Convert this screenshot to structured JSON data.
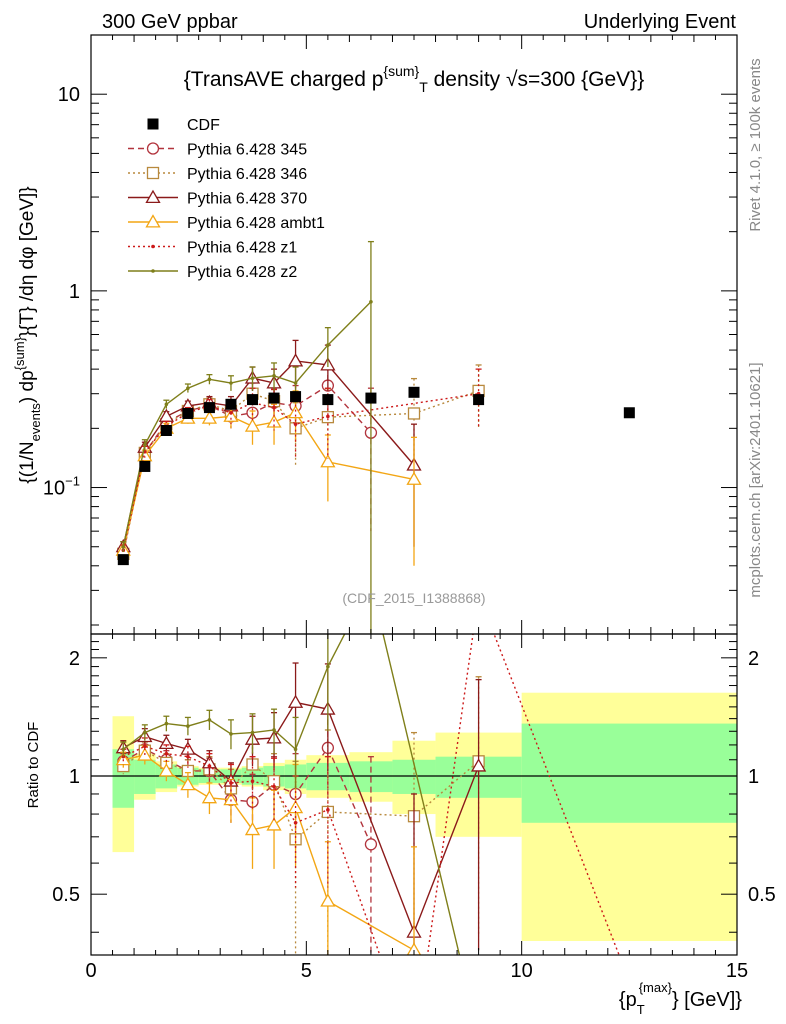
{
  "header": {
    "left": "300 GeV ppbar",
    "right": "Underlying Event"
  },
  "side_text": {
    "rivet": "Rivet 4.1.0, ≥ 100k events",
    "mcplots": "mcplots.cern.ch [arXiv:2401.10621]"
  },
  "chart_data": {
    "type": "line",
    "title": "{TransAVE charged p^{sum}_T density √s=300 {GeV}}",
    "title_parts": {
      "pre": "{TransAVE charged p",
      "sup": "{sum}",
      "sub": "T",
      "post": " density √s=300 {GeV}}"
    },
    "watermark": "(CDF_2015_I1388868)",
    "ylabel": "{(1/N_{events}) dp^{sum}}{T} /dη dφ [GeV]}",
    "ylabel_parts": {
      "a": "{(1/N",
      "a_sub": "events",
      "b": ") dp",
      "b_sup": "{sum}",
      "c": "}{T} /dη  dφ [GeV]}"
    },
    "xlabel": "{p_T^{max}} [GeV]}",
    "xlabel_parts": {
      "pre": "{p",
      "sub": "T",
      "sup": "{max}",
      "post": "} [GeV]}"
    },
    "ratio_ylabel": "Ratio to CDF",
    "xlim": [
      0,
      15
    ],
    "ylim": [
      0.018,
      20
    ],
    "yscale": "log",
    "ratio_ylim": [
      0.35,
      2.3
    ],
    "x_ticks": [
      "0",
      "5",
      "10",
      "15"
    ],
    "y_ticks": [
      "10^{-1}",
      "1",
      "10"
    ],
    "ratio_y_ticks": [
      "0.5",
      "1",
      "2"
    ],
    "legend": [
      "CDF",
      "Pythia 6.428 345",
      "Pythia 6.428 346",
      "Pythia 6.428 370",
      "Pythia 6.428 ambt1",
      "Pythia 6.428 z1",
      "Pythia 6.428 z2"
    ],
    "data": {
      "name": "CDF",
      "x": [
        0.75,
        1.25,
        1.75,
        2.25,
        2.75,
        3.25,
        3.75,
        4.25,
        4.75,
        5.5,
        6.5,
        7.5,
        9.0,
        12.5
      ],
      "y": [
        0.043,
        0.128,
        0.195,
        0.238,
        0.255,
        0.265,
        0.28,
        0.285,
        0.29,
        0.28,
        0.285,
        0.305,
        0.28,
        0.24
      ]
    },
    "ratio_band": {
      "edges": [
        0.5,
        1.0,
        1.5,
        2.0,
        2.5,
        3.0,
        3.5,
        4.0,
        4.5,
        5.0,
        6.0,
        7.0,
        8.0,
        10.0,
        15.0
      ],
      "stat_lo": [
        0.83,
        0.9,
        0.93,
        0.95,
        0.96,
        0.96,
        0.95,
        0.94,
        0.93,
        0.92,
        0.91,
        0.9,
        0.88,
        0.76
      ],
      "stat_hi": [
        1.17,
        1.1,
        1.07,
        1.05,
        1.04,
        1.04,
        1.05,
        1.06,
        1.07,
        1.08,
        1.09,
        1.1,
        1.12,
        1.36
      ],
      "tot_lo": [
        0.64,
        0.87,
        0.91,
        0.94,
        0.95,
        0.95,
        0.94,
        0.92,
        0.9,
        0.88,
        0.86,
        0.8,
        0.7,
        0.38
      ],
      "tot_hi": [
        1.42,
        1.14,
        1.09,
        1.06,
        1.05,
        1.05,
        1.06,
        1.08,
        1.1,
        1.13,
        1.15,
        1.23,
        1.29,
        1.63
      ]
    },
    "series": [
      {
        "name": "Pythia 6.428 345",
        "color": "#b2343d",
        "dash": "6,4",
        "marker": "circle",
        "x": [
          0.75,
          1.25,
          1.75,
          2.25,
          2.75,
          3.25,
          3.75,
          4.25,
          4.75,
          5.5,
          6.5
        ],
        "y": [
          0.047,
          0.15,
          0.215,
          0.245,
          0.262,
          0.23,
          0.24,
          0.27,
          0.26,
          0.33,
          0.19
        ],
        "err": [
          0.003,
          0.01,
          0.012,
          0.015,
          0.02,
          0.03,
          0.04,
          0.05,
          0.07,
          0.09,
          0.13
        ],
        "ratio": [
          1.09,
          1.17,
          1.1,
          1.03,
          1.03,
          0.87,
          0.86,
          0.95,
          0.9,
          1.18,
          0.67
        ],
        "ratio_err": [
          0.05,
          0.06,
          0.06,
          0.07,
          0.08,
          0.11,
          0.15,
          0.17,
          0.24,
          0.3,
          0.45
        ],
        "ratio_off": [
          {
            "x": 7.5,
            "y": 0.37
          }
        ]
      },
      {
        "name": "Pythia 6.428 346",
        "color": "#b8893d",
        "dash": "2,3",
        "marker": "square",
        "x": [
          0.75,
          1.25,
          1.75,
          2.25,
          2.75,
          3.25,
          3.75,
          4.25,
          4.75,
          5.5,
          7.5,
          9.0
        ],
        "y": [
          0.046,
          0.15,
          0.21,
          0.245,
          0.265,
          0.245,
          0.3,
          0.275,
          0.2,
          0.228,
          0.238,
          0.31
        ],
        "err": [
          0.003,
          0.01,
          0.013,
          0.015,
          0.02,
          0.03,
          0.04,
          0.05,
          0.07,
          0.09,
          0.12,
          0.11
        ],
        "ratio": [
          1.06,
          1.16,
          1.08,
          1.03,
          1.04,
          0.93,
          1.07,
          0.97,
          0.69,
          0.81,
          0.79,
          1.09
        ],
        "ratio_err": [
          0.05,
          0.06,
          0.06,
          0.07,
          0.08,
          0.11,
          0.15,
          0.17,
          0.4,
          0.5,
          0.5,
          0.7
        ],
        "ratio_off": []
      },
      {
        "name": "Pythia 6.428 370",
        "color": "#8b1a1a",
        "dash": "",
        "marker": "triangle",
        "x": [
          0.75,
          1.25,
          1.75,
          2.25,
          2.75,
          3.25,
          3.75,
          4.25,
          4.75,
          5.5,
          7.5
        ],
        "y": [
          0.05,
          0.16,
          0.23,
          0.26,
          0.27,
          0.26,
          0.36,
          0.34,
          0.44,
          0.42,
          0.13
        ],
        "err": [
          0.003,
          0.01,
          0.013,
          0.015,
          0.02,
          0.03,
          0.05,
          0.06,
          0.12,
          0.11,
          0.08
        ],
        "ratio": [
          1.18,
          1.26,
          1.21,
          1.17,
          1.08,
          0.97,
          1.24,
          1.25,
          1.54,
          1.48,
          0.4,
          1.06
        ],
        "ratio_x": [
          0.75,
          1.25,
          1.75,
          2.25,
          2.75,
          3.25,
          3.75,
          4.25,
          4.75,
          5.5,
          7.5,
          9.0
        ],
        "ratio_err": [
          0.05,
          0.06,
          0.06,
          0.07,
          0.08,
          0.11,
          0.18,
          0.2,
          0.4,
          0.45,
          0.5,
          0.7
        ],
        "ratio_off": [
          {
            "x": 6.5,
            "y": 0.3
          },
          {
            "x": 11.5,
            "y": 0.3
          }
        ]
      },
      {
        "name": "Pythia 6.428 ambt1",
        "color": "#f3a614",
        "dash": "",
        "marker": "triangle",
        "x": [
          0.75,
          1.25,
          1.75,
          2.25,
          2.75,
          3.25,
          3.75,
          4.25,
          4.75,
          5.5,
          7.5
        ],
        "y": [
          0.048,
          0.145,
          0.2,
          0.225,
          0.225,
          0.23,
          0.205,
          0.215,
          0.24,
          0.135,
          0.11
        ],
        "err": [
          0.003,
          0.01,
          0.012,
          0.014,
          0.018,
          0.03,
          0.04,
          0.05,
          0.07,
          0.05,
          0.07
        ],
        "ratio": [
          1.1,
          1.13,
          1.03,
          0.95,
          0.88,
          0.87,
          0.73,
          0.75,
          0.83,
          0.48,
          0.36
        ],
        "ratio_err": [
          0.05,
          0.06,
          0.06,
          0.07,
          0.08,
          0.11,
          0.15,
          0.17,
          0.24,
          0.2,
          0.3
        ],
        "ratio_off": []
      },
      {
        "name": "Pythia 6.428 z1",
        "color": "#cc1a1a",
        "dash": "2,3",
        "marker": "dot",
        "x": [
          0.75,
          1.25,
          1.75,
          2.25,
          2.75,
          3.25,
          3.75,
          4.25,
          4.75,
          5.5,
          9.0
        ],
        "y": [
          0.048,
          0.152,
          0.205,
          0.24,
          0.26,
          0.24,
          0.27,
          0.255,
          0.21,
          0.23,
          0.3
        ],
        "err": [
          0.003,
          0.01,
          0.012,
          0.015,
          0.02,
          0.03,
          0.05,
          0.06,
          0.07,
          0.09,
          0.1
        ],
        "ratio": [
          1.12,
          1.19,
          1.14,
          1.12,
          1.06,
          0.96,
          0.97,
          0.94,
          0.76,
          0.82,
          0.2,
          2.9,
          0.3
        ],
        "ratio_x": [
          0.75,
          1.25,
          1.75,
          2.25,
          2.75,
          3.25,
          3.75,
          4.25,
          4.75,
          5.5,
          7.5,
          9.0,
          12.5
        ],
        "ratio_err": [
          0.05,
          0.06,
          0.06,
          0.07,
          0.08,
          0.11,
          0.15,
          0.17,
          0.24,
          0.3,
          0,
          0,
          0
        ],
        "ratio_off": []
      },
      {
        "name": "Pythia 6.428 z2",
        "color": "#7f7f1a",
        "dash": "",
        "marker": "dot",
        "x": [
          0.75,
          1.25,
          1.75,
          2.25,
          2.75,
          3.25,
          3.75,
          4.25,
          4.75,
          5.5,
          6.5
        ],
        "y": [
          0.05,
          0.165,
          0.265,
          0.32,
          0.355,
          0.34,
          0.36,
          0.37,
          0.34,
          0.53,
          0.88
        ],
        "err": [
          0.003,
          0.01,
          0.013,
          0.016,
          0.02,
          0.03,
          0.05,
          0.06,
          0.07,
          0.12,
          0.9
        ],
        "ratio": [
          1.17,
          1.29,
          1.36,
          1.34,
          1.39,
          1.28,
          1.29,
          1.31,
          1.17,
          1.9,
          3.1,
          0.3
        ],
        "ratio_x": [
          0.75,
          1.25,
          1.75,
          2.25,
          2.75,
          3.25,
          3.75,
          4.25,
          4.75,
          5.5,
          6.5,
          8.7
        ],
        "ratio_err": [
          0.05,
          0.06,
          0.06,
          0.07,
          0.08,
          0.11,
          0.15,
          0.17,
          0.24,
          0.6,
          0,
          0
        ],
        "ratio_off": []
      }
    ]
  }
}
